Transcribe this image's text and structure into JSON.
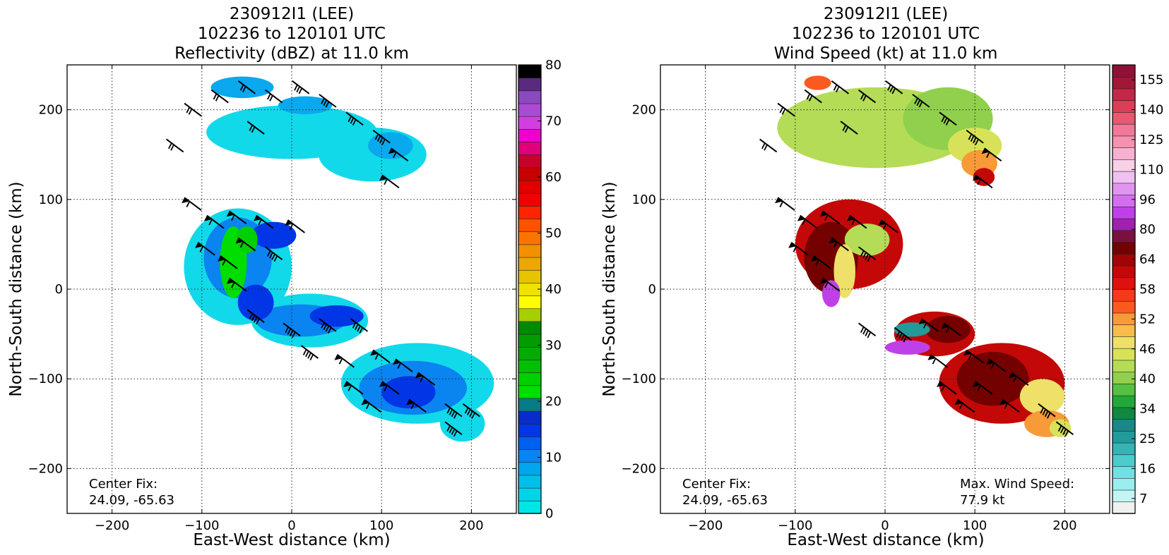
{
  "chart_data": [
    {
      "type": "heatmap",
      "title": [
        "230912I1 (LEE)",
        "102236 to 120101 UTC",
        "Reflectivity (dBZ) at 11.0 km"
      ],
      "xlabel": "East-West distance (km)",
      "ylabel": "North-South distance (km)",
      "xlim": [
        -250,
        250
      ],
      "ylim": [
        -250,
        250
      ],
      "xticks": [
        -200,
        -100,
        0,
        100,
        200
      ],
      "yticks": [
        -200,
        -100,
        0,
        100,
        200
      ],
      "grid": true,
      "annotation": [
        "Center Fix:",
        "24.09, -65.63"
      ],
      "colorbar": {
        "min": 0,
        "max": 80,
        "ticks": [
          "0",
          "10",
          "20",
          "30",
          "40",
          "50",
          "60",
          "70",
          "80"
        ],
        "colors": [
          "#00e5e5",
          "#00d5e8",
          "#00bfea",
          "#00a6ee",
          "#0a84f0",
          "#0060f0",
          "#0036e6",
          "#0a2bcc",
          "#077b86",
          "#00dd00",
          "#00cf00",
          "#00c000",
          "#00ad00",
          "#009c00",
          "#008a00",
          "#a6cf00",
          "#ffff00",
          "#efe100",
          "#e6c400",
          "#eaa800",
          "#f29000",
          "#fa7400",
          "#ff5200",
          "#ff2400",
          "#f20000",
          "#e00000",
          "#c80000",
          "#c8002a",
          "#e0007a",
          "#ee00cc",
          "#d23ee0",
          "#aa4ad6",
          "#8a4abe",
          "#5a2a80",
          "#000000"
        ]
      },
      "cells": [
        {
          "x": 0,
          "y": 175,
          "rx": 95,
          "ry": 30,
          "color": "#11d9ea"
        },
        {
          "x": 90,
          "y": 150,
          "rx": 60,
          "ry": 30,
          "color": "#11d9ea"
        },
        {
          "x": -55,
          "y": 225,
          "rx": 35,
          "ry": 12,
          "color": "#0aa8ee"
        },
        {
          "x": 15,
          "y": 205,
          "rx": 30,
          "ry": 10,
          "color": "#0aa8ee"
        },
        {
          "x": 110,
          "y": 160,
          "rx": 25,
          "ry": 15,
          "color": "#0aa8ee"
        },
        {
          "x": -60,
          "y": 25,
          "rx": 60,
          "ry": 65,
          "color": "#11d9ea"
        },
        {
          "x": -60,
          "y": 35,
          "rx": 38,
          "ry": 45,
          "color": "#0a84f0"
        },
        {
          "x": -20,
          "y": 60,
          "rx": 25,
          "ry": 15,
          "color": "#0036e6"
        },
        {
          "x": -65,
          "y": 30,
          "rx": 15,
          "ry": 40,
          "color": "#00dd00"
        },
        {
          "x": -50,
          "y": 55,
          "rx": 12,
          "ry": 15,
          "color": "#00cf00"
        },
        {
          "x": 20,
          "y": -35,
          "rx": 65,
          "ry": 30,
          "color": "#11d9ea"
        },
        {
          "x": 10,
          "y": -35,
          "rx": 50,
          "ry": 18,
          "color": "#0a84f0"
        },
        {
          "x": 50,
          "y": -30,
          "rx": 30,
          "ry": 12,
          "color": "#0036e6"
        },
        {
          "x": -40,
          "y": -15,
          "rx": 20,
          "ry": 20,
          "color": "#0036e6"
        },
        {
          "x": 140,
          "y": -105,
          "rx": 85,
          "ry": 45,
          "color": "#11d9ea"
        },
        {
          "x": 135,
          "y": -110,
          "rx": 60,
          "ry": 30,
          "color": "#0a84f0"
        },
        {
          "x": 130,
          "y": -115,
          "rx": 30,
          "ry": 18,
          "color": "#0036e6"
        },
        {
          "x": 190,
          "y": -150,
          "rx": 25,
          "ry": 20,
          "color": "#11d9ea"
        }
      ],
      "barbs": [
        {
          "x": -110,
          "y": 200,
          "speed": 15
        },
        {
          "x": -80,
          "y": 215,
          "speed": 15
        },
        {
          "x": -50,
          "y": 225,
          "speed": 20
        },
        {
          "x": -20,
          "y": 215,
          "speed": 20
        },
        {
          "x": 10,
          "y": 225,
          "speed": 25
        },
        {
          "x": 40,
          "y": 210,
          "speed": 25
        },
        {
          "x": 70,
          "y": 190,
          "speed": 30
        },
        {
          "x": 100,
          "y": 170,
          "speed": 40
        },
        {
          "x": 120,
          "y": 150,
          "speed": 50
        },
        {
          "x": 110,
          "y": 120,
          "speed": 50
        },
        {
          "x": -130,
          "y": 160,
          "speed": 15
        },
        {
          "x": -40,
          "y": 180,
          "speed": 15
        },
        {
          "x": -110,
          "y": 95,
          "speed": 50
        },
        {
          "x": -85,
          "y": 75,
          "speed": 55
        },
        {
          "x": -60,
          "y": 80,
          "speed": 55
        },
        {
          "x": -30,
          "y": 75,
          "speed": 50
        },
        {
          "x": 5,
          "y": 70,
          "speed": 50
        },
        {
          "x": -95,
          "y": 45,
          "speed": 55
        },
        {
          "x": -70,
          "y": 30,
          "speed": 55
        },
        {
          "x": -50,
          "y": 50,
          "speed": 50
        },
        {
          "x": -20,
          "y": 40,
          "speed": 40
        },
        {
          "x": -60,
          "y": 5,
          "speed": 50
        },
        {
          "x": -40,
          "y": -30,
          "speed": 35
        },
        {
          "x": 0,
          "y": -45,
          "speed": 35
        },
        {
          "x": 40,
          "y": -40,
          "speed": 40
        },
        {
          "x": 75,
          "y": -40,
          "speed": 45
        },
        {
          "x": 20,
          "y": -70,
          "speed": 40
        },
        {
          "x": 60,
          "y": -80,
          "speed": 50
        },
        {
          "x": 100,
          "y": -75,
          "speed": 50
        },
        {
          "x": 125,
          "y": -85,
          "speed": 55
        },
        {
          "x": 70,
          "y": -110,
          "speed": 55
        },
        {
          "x": 110,
          "y": -110,
          "speed": 60
        },
        {
          "x": 150,
          "y": -100,
          "speed": 50
        },
        {
          "x": 90,
          "y": -130,
          "speed": 55
        },
        {
          "x": 140,
          "y": -130,
          "speed": 50
        },
        {
          "x": 180,
          "y": -135,
          "speed": 45
        },
        {
          "x": 200,
          "y": -135,
          "speed": 40
        },
        {
          "x": 180,
          "y": -155,
          "speed": 35
        }
      ]
    },
    {
      "type": "heatmap",
      "title": [
        "230912I1 (LEE)",
        "102236 to 120101 UTC",
        "Wind Speed (kt) at 11.0 km"
      ],
      "xlabel": "East-West distance (km)",
      "ylabel": "North-South distance (km)",
      "xlim": [
        -250,
        250
      ],
      "ylim": [
        -250,
        250
      ],
      "xticks": [
        -200,
        -100,
        0,
        100,
        200
      ],
      "yticks": [
        -200,
        -100,
        0,
        100,
        200
      ],
      "grid": true,
      "annotation": [
        "Center Fix:",
        "24.09, -65.63"
      ],
      "annotation2": [
        "Max. Wind Speed:",
        "77.9 kt"
      ],
      "colorbar": {
        "ticks": [
          "7",
          "16",
          "25",
          "34",
          "40",
          "46",
          "52",
          "58",
          "64",
          "80",
          "96",
          "110",
          "125",
          "140",
          "155"
        ],
        "colors": [
          "#f0f0f0",
          "#c4f4f4",
          "#9aeeee",
          "#6ee2e2",
          "#4ccccc",
          "#34b4b4",
          "#229a9a",
          "#1a8888",
          "#108840",
          "#22a838",
          "#56c040",
          "#90d04c",
          "#b4dc56",
          "#d8e258",
          "#eee068",
          "#f8bc4c",
          "#f89a38",
          "#fa5a20",
          "#f43a18",
          "#e01010",
          "#c40808",
          "#a00404",
          "#740000",
          "#7a1040",
          "#a020b0",
          "#c040e8",
          "#d46ef0",
          "#e096f0",
          "#f0c0f0",
          "#f8d0e8",
          "#f8b0d0",
          "#f890b0",
          "#f07898",
          "#e85870",
          "#d84058",
          "#c42848",
          "#a01838",
          "#901038"
        ]
      },
      "cells": [
        {
          "x": -10,
          "y": 180,
          "rx": 110,
          "ry": 45,
          "color": "#b4dc56"
        },
        {
          "x": 70,
          "y": 190,
          "rx": 50,
          "ry": 35,
          "color": "#90d04c"
        },
        {
          "x": 100,
          "y": 160,
          "rx": 30,
          "ry": 20,
          "color": "#d8e258"
        },
        {
          "x": 105,
          "y": 140,
          "rx": 20,
          "ry": 15,
          "color": "#f89a38"
        },
        {
          "x": 110,
          "y": 125,
          "rx": 12,
          "ry": 10,
          "color": "#c40808"
        },
        {
          "x": -75,
          "y": 230,
          "rx": 15,
          "ry": 8,
          "color": "#fa5a20"
        },
        {
          "x": -40,
          "y": 50,
          "rx": 60,
          "ry": 50,
          "color": "#c40808"
        },
        {
          "x": -60,
          "y": 35,
          "rx": 30,
          "ry": 40,
          "color": "#740000"
        },
        {
          "x": -20,
          "y": 55,
          "rx": 25,
          "ry": 18,
          "color": "#b4dc56"
        },
        {
          "x": -45,
          "y": 20,
          "rx": 12,
          "ry": 30,
          "color": "#eee068"
        },
        {
          "x": -60,
          "y": -5,
          "rx": 10,
          "ry": 15,
          "color": "#c040e8"
        },
        {
          "x": 55,
          "y": -50,
          "rx": 45,
          "ry": 25,
          "color": "#c40808"
        },
        {
          "x": 70,
          "y": -45,
          "rx": 25,
          "ry": 15,
          "color": "#740000"
        },
        {
          "x": 30,
          "y": -45,
          "rx": 20,
          "ry": 8,
          "color": "#229a9a"
        },
        {
          "x": 25,
          "y": -65,
          "rx": 25,
          "ry": 8,
          "color": "#c040e8"
        },
        {
          "x": 130,
          "y": -105,
          "rx": 70,
          "ry": 45,
          "color": "#c40808"
        },
        {
          "x": 120,
          "y": -100,
          "rx": 40,
          "ry": 30,
          "color": "#740000"
        },
        {
          "x": 175,
          "y": -120,
          "rx": 25,
          "ry": 20,
          "color": "#eee068"
        },
        {
          "x": 180,
          "y": -150,
          "rx": 25,
          "ry": 15,
          "color": "#f89a38"
        },
        {
          "x": 195,
          "y": -155,
          "rx": 12,
          "ry": 10,
          "color": "#d8e258"
        }
      ],
      "barbs": [
        {
          "x": -110,
          "y": 200,
          "speed": 15
        },
        {
          "x": -80,
          "y": 215,
          "speed": 15
        },
        {
          "x": -50,
          "y": 225,
          "speed": 20
        },
        {
          "x": -20,
          "y": 215,
          "speed": 20
        },
        {
          "x": 10,
          "y": 225,
          "speed": 25
        },
        {
          "x": 40,
          "y": 210,
          "speed": 25
        },
        {
          "x": 70,
          "y": 190,
          "speed": 30
        },
        {
          "x": 100,
          "y": 170,
          "speed": 40
        },
        {
          "x": 120,
          "y": 150,
          "speed": 50
        },
        {
          "x": 110,
          "y": 120,
          "speed": 50
        },
        {
          "x": -130,
          "y": 160,
          "speed": 15
        },
        {
          "x": -40,
          "y": 180,
          "speed": 15
        },
        {
          "x": -110,
          "y": 95,
          "speed": 50
        },
        {
          "x": -85,
          "y": 75,
          "speed": 55
        },
        {
          "x": -60,
          "y": 80,
          "speed": 55
        },
        {
          "x": -30,
          "y": 75,
          "speed": 50
        },
        {
          "x": 5,
          "y": 70,
          "speed": 50
        },
        {
          "x": -95,
          "y": 45,
          "speed": 55
        },
        {
          "x": -70,
          "y": 30,
          "speed": 55
        },
        {
          "x": -50,
          "y": 50,
          "speed": 50
        },
        {
          "x": -20,
          "y": 40,
          "speed": 40
        },
        {
          "x": -60,
          "y": 5,
          "speed": 50
        },
        {
          "x": -20,
          "y": -45,
          "speed": 35
        },
        {
          "x": 20,
          "y": -50,
          "speed": 40
        },
        {
          "x": 50,
          "y": -40,
          "speed": 50
        },
        {
          "x": 75,
          "y": -45,
          "speed": 55
        },
        {
          "x": 60,
          "y": -80,
          "speed": 50
        },
        {
          "x": 100,
          "y": -75,
          "speed": 50
        },
        {
          "x": 125,
          "y": -85,
          "speed": 55
        },
        {
          "x": 70,
          "y": -110,
          "speed": 55
        },
        {
          "x": 110,
          "y": -110,
          "speed": 60
        },
        {
          "x": 150,
          "y": -100,
          "speed": 50
        },
        {
          "x": 90,
          "y": -130,
          "speed": 55
        },
        {
          "x": 140,
          "y": -130,
          "speed": 50
        },
        {
          "x": 180,
          "y": -135,
          "speed": 45
        },
        {
          "x": 200,
          "y": -155,
          "speed": 35
        }
      ]
    }
  ]
}
